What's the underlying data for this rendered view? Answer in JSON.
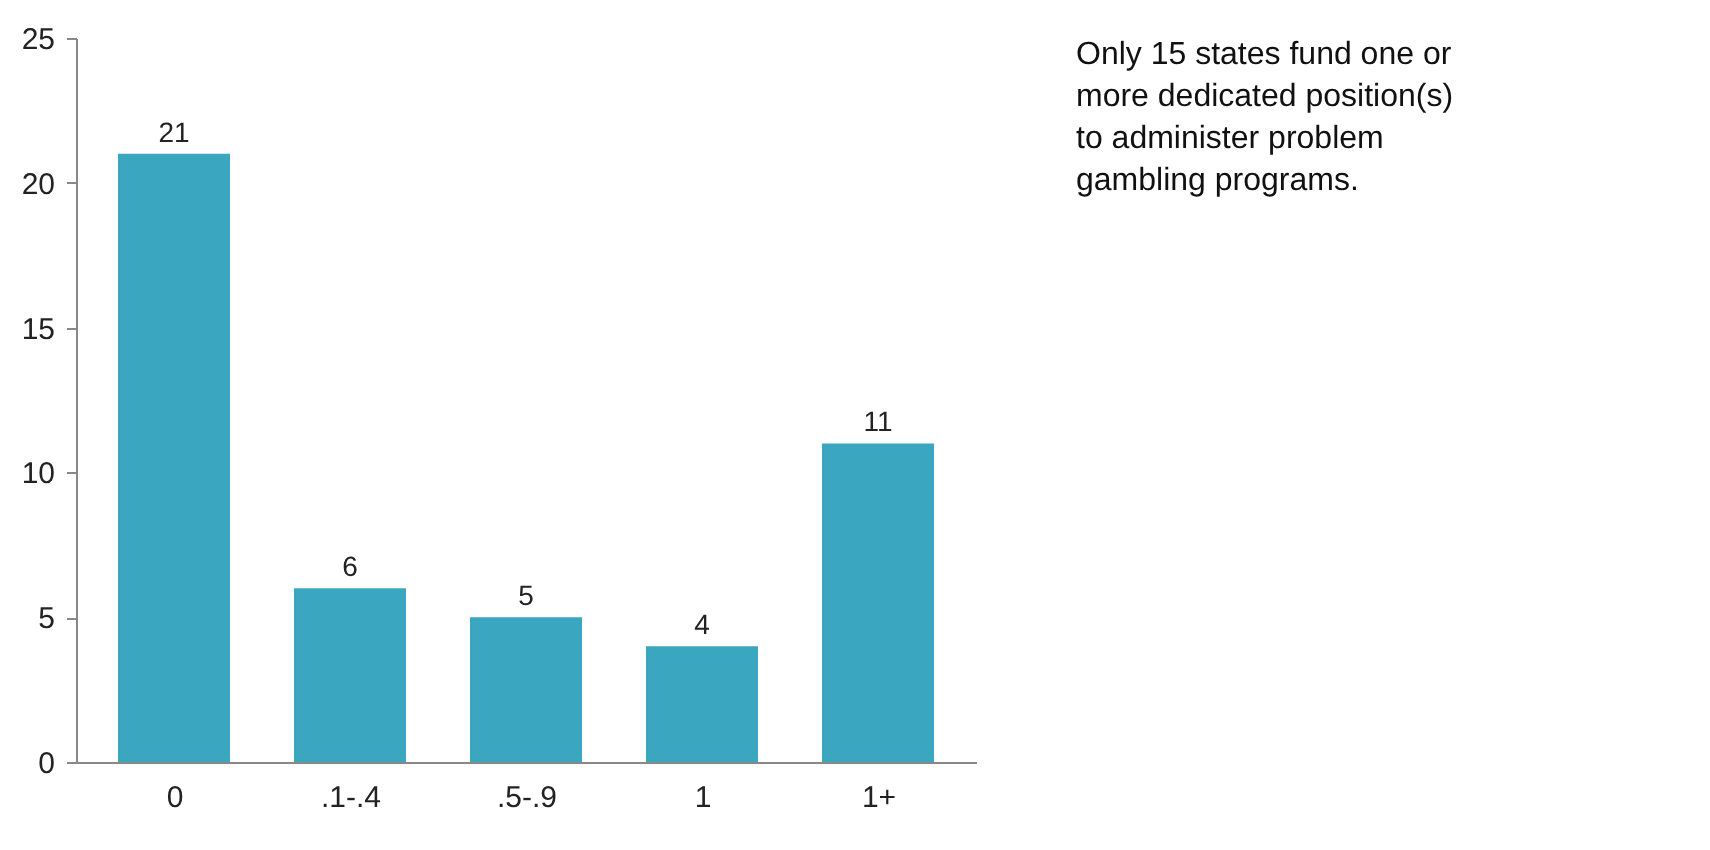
{
  "chart_data": {
    "type": "bar",
    "categories": [
      "0",
      ".1-.4",
      ".5-.9",
      "1",
      "1+"
    ],
    "values": [
      21,
      6,
      5,
      4,
      11
    ],
    "color": "#3aa6bf",
    "ylim": [
      0,
      25
    ],
    "yticks": [
      0,
      5,
      10,
      15,
      20,
      25
    ],
    "grid": false,
    "data_labels": true,
    "annotations": [
      "Only 15 states fund one or more dedicated position(s) to administer problem gambling programs."
    ]
  }
}
